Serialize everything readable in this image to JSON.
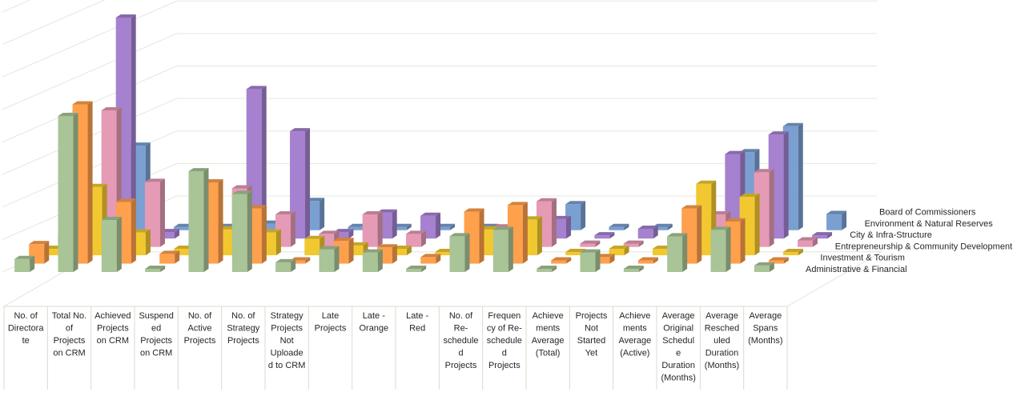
{
  "chart_data": {
    "type": "bar",
    "variant": "3d-column",
    "title": "",
    "xlabel": "",
    "ylabel": "",
    "grid": true,
    "legend": "right, series labels along depth axis",
    "categories": [
      "No. of Directorate",
      "Total No. of Projects on CRM",
      "Achieved Projects on CRM",
      "Suspended Projects on CRM",
      "No. of Active Projects",
      "No. of Strategy Projects",
      "Strategy Projects Not Uploaded to CRM",
      "Late Projects",
      "Late - Orange",
      "Late - Red",
      "No. of Re-scheduled Projects",
      "Frequency of Re-scheduled Projects",
      "Achievements Average (Total)",
      "Projects Not Started Yet",
      "Achievements Average (Active)",
      "Average Original Schedule Duration (Months)",
      "Average Rescheduled Duration (Months)",
      "Average Spans (Months)"
    ],
    "category_label_lines": [
      [
        "No. of",
        "Directora",
        "te"
      ],
      [
        "Total No.",
        "of",
        "Projects",
        "on CRM"
      ],
      [
        "Achieved",
        "Projects",
        "on CRM"
      ],
      [
        "Suspend",
        "ed",
        "Projects",
        "on CRM"
      ],
      [
        "No. of",
        "Active",
        "Projects"
      ],
      [
        "No. of",
        "Strategy",
        "Projects"
      ],
      [
        "Strategy",
        "Projects",
        "Not",
        "Uploade",
        "d to CRM"
      ],
      [
        "Late",
        "Projects"
      ],
      [
        "Late -",
        "Orange"
      ],
      [
        "Late -",
        "Red"
      ],
      [
        "No. of",
        "Re-",
        "schedule",
        "d",
        "Projects"
      ],
      [
        "Frequen",
        "cy of Re-",
        "schedule",
        "d",
        "Projects"
      ],
      [
        "Achieve",
        "ments",
        "Average",
        "(Total)"
      ],
      [
        "Projects",
        "Not",
        "Started",
        "Yet"
      ],
      [
        "Achieve",
        "ments",
        "Average",
        "(Active)"
      ],
      [
        "Average",
        "Original",
        "Schedul",
        "e",
        "Duration",
        "(Months)"
      ],
      [
        "Average",
        "Resched",
        "uled",
        "Duration",
        "(Months)"
      ],
      [
        "Average",
        "Spans",
        "(Months)"
      ]
    ],
    "ylim": [
      0,
      80
    ],
    "series": [
      {
        "name": "Administrative & Financial",
        "color": "#a9c497",
        "values": [
          4,
          48,
          16,
          1,
          31,
          24,
          3,
          7,
          6,
          1,
          11,
          13,
          1,
          6,
          1,
          11,
          13,
          2
        ]
      },
      {
        "name": "Investment & Tourism",
        "color": "#ffa04d",
        "values": [
          6,
          49,
          19,
          3,
          25,
          17,
          1,
          7,
          5,
          2,
          16,
          18,
          1,
          2,
          1,
          17,
          13,
          1
        ]
      },
      {
        "name": "Entrepreneurship & Community Development",
        "color": "#f2c830",
        "values": [
          2,
          21,
          7,
          2,
          8,
          7,
          5,
          3,
          2,
          1,
          8,
          11,
          1,
          2,
          2,
          22,
          18,
          1
        ]
      },
      {
        "name": "City & Infra-Structure",
        "color": "#e59ab5",
        "values": [
          4,
          42,
          20,
          1,
          18,
          10,
          4,
          10,
          4,
          1,
          6,
          14,
          1,
          1,
          3,
          10,
          23,
          2
        ]
      },
      {
        "name": "Environment & Natural Reserves",
        "color": "#a581cf",
        "values": [
          2,
          68,
          2,
          1,
          46,
          33,
          2,
          8,
          7,
          1,
          1,
          6,
          1,
          3,
          1,
          26,
          32,
          1
        ]
      },
      {
        "name": "Board of Commissioners",
        "color": "#7aa0d2",
        "values": [
          3,
          26,
          1,
          1,
          2,
          9,
          1,
          1,
          1,
          1,
          1,
          8,
          1,
          1,
          1,
          24,
          32,
          5
        ]
      }
    ]
  }
}
